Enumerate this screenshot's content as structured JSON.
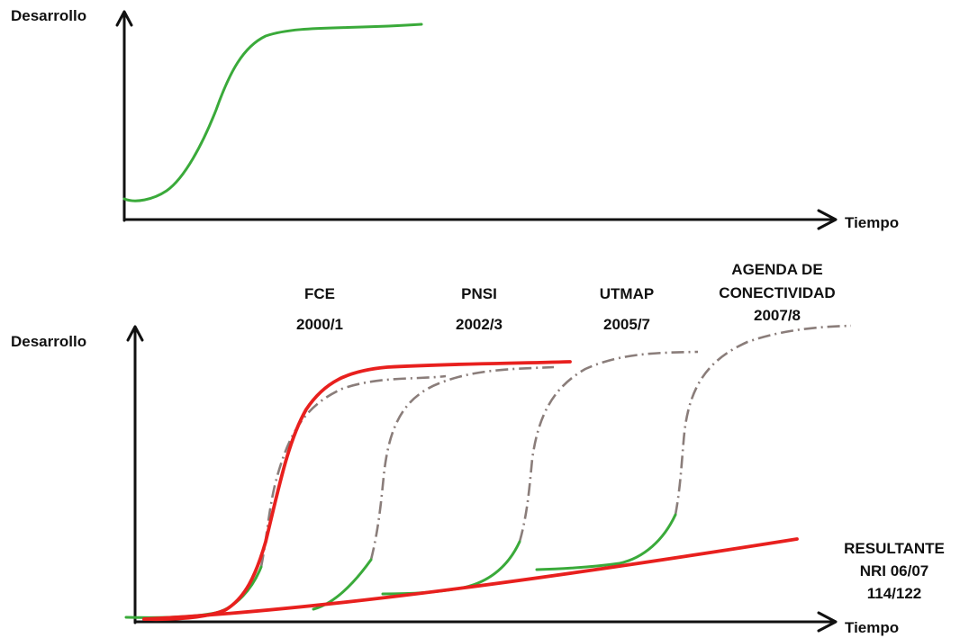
{
  "colors": {
    "axis": "#111111",
    "green": "#3aaa3a",
    "red": "#e8201e",
    "dashdot": "#8a7d7a"
  },
  "top_chart": {
    "y_label": "Desarrollo",
    "x_label": "Tiempo"
  },
  "bottom_chart": {
    "y_label": "Desarrollo",
    "x_label": "Tiempo",
    "phases": [
      {
        "name": "FCE",
        "years": "2000/1"
      },
      {
        "name": "PNSI",
        "years": "2002/3"
      },
      {
        "name": "UTMAP",
        "years": "2005/7"
      },
      {
        "name_line1": "AGENDA DE",
        "name_line2": "CONECTIVIDAD",
        "years": "2007/8"
      }
    ],
    "resultant": {
      "line1": "RESULTANTE",
      "line2": "NRI 06/07",
      "line3": "114/122"
    }
  }
}
